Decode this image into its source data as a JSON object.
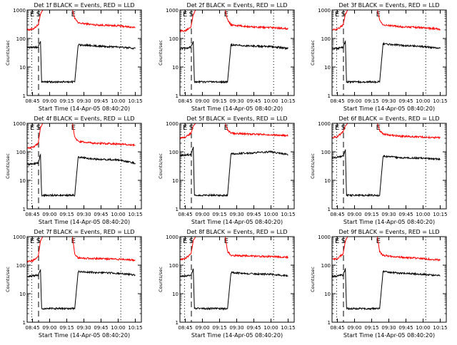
{
  "chart_data": [
    {
      "type": "line",
      "title": "Det 1f BLACK = Events, RED = LLD",
      "xlabel": "Start Time (14-Apr-05 08:40:20)",
      "ylabel": "Counts/sec",
      "y_scale": "log",
      "ylim": [
        1,
        1000
      ],
      "yticks": [
        1,
        10,
        100,
        1000
      ],
      "yticklabels": [
        "1",
        "10",
        "100",
        "1000"
      ],
      "xlim_minutes": [
        0,
        100
      ],
      "xticklabels": [
        "08:45",
        "09:00",
        "09:15",
        "09:30",
        "09:45",
        "10:00",
        "10:15"
      ],
      "markers": [
        {
          "text": "E",
          "style": "dotted"
        },
        {
          "text": "S",
          "style": "dashed"
        },
        {
          "text": "E",
          "style": "dotted"
        }
      ],
      "series": [
        {
          "color": "#ff0000",
          "x": [
            "08:40",
            "08:45",
            "08:50",
            "08:52",
            "08:54",
            "08:55",
            "09:20",
            "09:22",
            "09:25",
            "09:40",
            "10:00",
            "10:15"
          ],
          "y": [
            200,
            210,
            300,
            700,
            1000,
            1000,
            1000,
            500,
            350,
            300,
            280,
            240
          ]
        },
        {
          "color": "#000000",
          "x": [
            "08:40",
            "08:45",
            "08:50",
            "08:52",
            "08:53",
            "09:22",
            "09:25",
            "09:40",
            "10:00",
            "10:15"
          ],
          "y": [
            50,
            48,
            50,
            80,
            3,
            3,
            60,
            55,
            50,
            45
          ]
        }
      ]
    },
    {
      "type": "line",
      "title": "Det 2f BLACK = Events, RED = LLD",
      "xlabel": "Start Time (14-Apr-05 08:40:20)",
      "ylabel": "Counts/sec",
      "y_scale": "log",
      "ylim": [
        1,
        1000
      ],
      "yticks": [
        1,
        10,
        100,
        1000
      ],
      "yticklabels": [
        "1",
        "10",
        "100",
        "1000"
      ],
      "xlim_minutes": [
        0,
        100
      ],
      "xticklabels": [
        "08:45",
        "09:00",
        "09:15",
        "09:30",
        "09:45",
        "10:00",
        "10:15"
      ],
      "markers": [
        {
          "text": "E",
          "style": "dotted"
        },
        {
          "text": "S",
          "style": "dashed"
        },
        {
          "text": "E",
          "style": "dotted"
        }
      ],
      "series": [
        {
          "color": "#ff0000",
          "x": [
            "08:40",
            "08:45",
            "08:50",
            "08:52",
            "08:54",
            "08:55",
            "09:20",
            "09:22",
            "09:25",
            "09:40",
            "10:00",
            "10:15"
          ],
          "y": [
            180,
            190,
            260,
            700,
            1000,
            1000,
            1000,
            450,
            300,
            260,
            240,
            220
          ]
        },
        {
          "color": "#000000",
          "x": [
            "08:40",
            "08:45",
            "08:50",
            "08:52",
            "08:53",
            "09:22",
            "09:25",
            "09:40",
            "10:00",
            "10:15"
          ],
          "y": [
            45,
            45,
            50,
            80,
            3,
            3,
            60,
            55,
            52,
            45
          ]
        }
      ]
    },
    {
      "type": "line",
      "title": "Det 3f BLACK = Events, RED = LLD",
      "xlabel": "Start Time (14-Apr-05 08:40:20)",
      "ylabel": "Counts/sec",
      "y_scale": "log",
      "ylim": [
        1,
        1000
      ],
      "yticks": [
        1,
        10,
        100,
        1000
      ],
      "yticklabels": [
        "1",
        "10",
        "100",
        "1000"
      ],
      "xlim_minutes": [
        0,
        100
      ],
      "xticklabels": [
        "08:45",
        "09:00",
        "09:15",
        "09:30",
        "09:45",
        "10:00",
        "10:15"
      ],
      "markers": [
        {
          "text": "E",
          "style": "dotted"
        },
        {
          "text": "S",
          "style": "dashed"
        },
        {
          "text": "E",
          "style": "dotted"
        }
      ],
      "series": [
        {
          "color": "#ff0000",
          "x": [
            "08:40",
            "08:45",
            "08:50",
            "08:52",
            "08:54",
            "08:55",
            "09:20",
            "09:22",
            "09:25",
            "09:40",
            "10:00",
            "10:15"
          ],
          "y": [
            200,
            210,
            300,
            700,
            1000,
            1000,
            1000,
            450,
            300,
            260,
            240,
            210
          ]
        },
        {
          "color": "#000000",
          "x": [
            "08:40",
            "08:45",
            "08:50",
            "08:52",
            "08:53",
            "09:22",
            "09:25",
            "09:40",
            "10:00",
            "10:15"
          ],
          "y": [
            45,
            45,
            50,
            80,
            3,
            3,
            65,
            58,
            52,
            45
          ]
        }
      ]
    },
    {
      "type": "line",
      "title": "Det 4f BLACK = Events, RED = LLD",
      "xlabel": "Start Time (14-Apr-05 08:40:20)",
      "ylabel": "Counts/sec",
      "y_scale": "log",
      "ylim": [
        1,
        1000
      ],
      "yticks": [
        1,
        10,
        100,
        1000
      ],
      "yticklabels": [
        "1",
        "10",
        "100",
        "1000"
      ],
      "xlim_minutes": [
        0,
        100
      ],
      "xticklabels": [
        "08:45",
        "09:00",
        "09:15",
        "09:30",
        "09:45",
        "10:00",
        "10:15"
      ],
      "markers": [
        {
          "text": "E",
          "style": "dotted"
        },
        {
          "text": "S",
          "style": "dashed"
        },
        {
          "text": "E",
          "style": "dotted"
        }
      ],
      "series": [
        {
          "color": "#ff0000",
          "x": [
            "08:40",
            "08:45",
            "08:50",
            "08:52",
            "08:54",
            "08:55",
            "09:20",
            "09:22",
            "09:25",
            "09:40",
            "10:00",
            "10:15"
          ],
          "y": [
            130,
            140,
            200,
            700,
            1000,
            1000,
            1000,
            320,
            230,
            200,
            190,
            170
          ]
        },
        {
          "color": "#000000",
          "x": [
            "08:40",
            "08:45",
            "08:50",
            "08:52",
            "08:53",
            "09:22",
            "09:25",
            "09:40",
            "10:00",
            "10:15"
          ],
          "y": [
            35,
            38,
            40,
            80,
            3,
            3,
            65,
            55,
            52,
            40
          ]
        }
      ]
    },
    {
      "type": "line",
      "title": "Det 5f BLACK = Events, RED = LLD",
      "xlabel": "Start Time (14-Apr-05 08:40:20)",
      "ylabel": "Counts/sec",
      "y_scale": "log",
      "ylim": [
        1,
        1000
      ],
      "yticks": [
        1,
        10,
        100,
        1000
      ],
      "yticklabels": [
        "1",
        "10",
        "100",
        "1000"
      ],
      "xlim_minutes": [
        0,
        100
      ],
      "xticklabels": [
        "08:45",
        "09:00",
        "09:15",
        "09:30",
        "09:45",
        "10:00",
        "10:15"
      ],
      "markers": [
        {
          "text": "E",
          "style": "dotted"
        },
        {
          "text": "S",
          "style": "dashed"
        },
        {
          "text": "E",
          "style": "dotted"
        }
      ],
      "series": [
        {
          "color": "#ff0000",
          "x": [
            "08:40",
            "08:45",
            "08:50",
            "08:52",
            "08:54",
            "08:55",
            "09:20",
            "09:22",
            "09:25",
            "09:40",
            "10:00",
            "10:15"
          ],
          "y": [
            300,
            320,
            450,
            800,
            1000,
            1000,
            1000,
            600,
            450,
            420,
            400,
            370
          ]
        },
        {
          "color": "#000000",
          "x": [
            "08:40",
            "08:45",
            "08:50",
            "08:52",
            "08:53",
            "09:22",
            "09:25",
            "09:40",
            "10:00",
            "10:15"
          ],
          "y": [
            75,
            78,
            80,
            150,
            3,
            3,
            85,
            90,
            100,
            80
          ]
        }
      ]
    },
    {
      "type": "line",
      "title": "Det 6f BLACK = Events, RED = LLD",
      "xlabel": "Start Time (14-Apr-05 08:40:20)",
      "ylabel": "Counts/sec",
      "y_scale": "log",
      "ylim": [
        1,
        1000
      ],
      "yticks": [
        1,
        10,
        100,
        1000
      ],
      "yticklabels": [
        "1",
        "10",
        "100",
        "1000"
      ],
      "xlim_minutes": [
        0,
        100
      ],
      "xticklabels": [
        "08:45",
        "09:00",
        "09:15",
        "09:30",
        "09:45",
        "10:00",
        "10:15"
      ],
      "markers": [
        {
          "text": "E",
          "style": "dotted"
        },
        {
          "text": "S",
          "style": "dashed"
        },
        {
          "text": "E",
          "style": "dotted"
        }
      ],
      "series": [
        {
          "color": "#ff0000",
          "x": [
            "08:40",
            "08:45",
            "08:50",
            "08:52",
            "08:54",
            "08:55",
            "09:20",
            "09:22",
            "09:25",
            "09:40",
            "10:00",
            "10:15"
          ],
          "y": [
            320,
            340,
            500,
            800,
            1000,
            1000,
            1000,
            550,
            420,
            350,
            330,
            310
          ]
        },
        {
          "color": "#000000",
          "x": [
            "08:40",
            "08:45",
            "08:50",
            "08:52",
            "08:53",
            "09:22",
            "09:25",
            "09:40",
            "10:00",
            "10:15"
          ],
          "y": [
            60,
            65,
            70,
            120,
            3,
            3,
            70,
            62,
            60,
            55
          ]
        }
      ]
    },
    {
      "type": "line",
      "title": "Det 7f BLACK = Events, RED = LLD",
      "xlabel": "Start Time (14-Apr-05 08:40:20)",
      "ylabel": "Counts/sec",
      "y_scale": "log",
      "ylim": [
        1,
        1000
      ],
      "yticks": [
        1,
        10,
        100,
        1000
      ],
      "yticklabels": [
        "1",
        "10",
        "100",
        "1000"
      ],
      "xlim_minutes": [
        0,
        100
      ],
      "xticklabels": [
        "08:45",
        "09:00",
        "09:15",
        "09:30",
        "09:45",
        "10:00",
        "10:15"
      ],
      "markers": [
        {
          "text": "E",
          "style": "dotted"
        },
        {
          "text": "S",
          "style": "dashed"
        },
        {
          "text": "E",
          "style": "dotted"
        }
      ],
      "series": [
        {
          "color": "#ff0000",
          "x": [
            "08:40",
            "08:45",
            "08:50",
            "08:52",
            "08:54",
            "08:55",
            "09:20",
            "09:22",
            "09:25",
            "09:40",
            "10:00",
            "10:15"
          ],
          "y": [
            130,
            140,
            200,
            700,
            1000,
            1000,
            1000,
            250,
            180,
            170,
            160,
            150
          ]
        },
        {
          "color": "#000000",
          "x": [
            "08:40",
            "08:45",
            "08:50",
            "08:52",
            "08:53",
            "09:22",
            "09:25",
            "09:40",
            "10:00",
            "10:15"
          ],
          "y": [
            40,
            42,
            45,
            70,
            3,
            3,
            60,
            55,
            52,
            45
          ]
        }
      ]
    },
    {
      "type": "line",
      "title": "Det 8f BLACK = Events, RED = LLD",
      "xlabel": "Start Time (14-Apr-05 08:40:20)",
      "ylabel": "Counts/sec",
      "y_scale": "log",
      "ylim": [
        1,
        1000
      ],
      "yticks": [
        1,
        10,
        100,
        1000
      ],
      "yticklabels": [
        "1",
        "10",
        "100",
        "1000"
      ],
      "xlim_minutes": [
        0,
        100
      ],
      "xticklabels": [
        "08:45",
        "09:00",
        "09:15",
        "09:30",
        "09:45",
        "10:00",
        "10:15"
      ],
      "markers": [
        {
          "text": "E",
          "style": "dotted"
        },
        {
          "text": "S",
          "style": "dashed"
        },
        {
          "text": "E",
          "style": "dotted"
        }
      ],
      "series": [
        {
          "color": "#ff0000",
          "x": [
            "08:40",
            "08:45",
            "08:50",
            "08:52",
            "08:54",
            "08:55",
            "09:20",
            "09:22",
            "09:25",
            "09:40",
            "10:00",
            "10:15"
          ],
          "y": [
            160,
            170,
            250,
            700,
            1000,
            1000,
            1000,
            300,
            220,
            210,
            200,
            190
          ]
        },
        {
          "color": "#000000",
          "x": [
            "08:40",
            "08:45",
            "08:50",
            "08:52",
            "08:53",
            "09:22",
            "09:25",
            "09:40",
            "10:00",
            "10:15"
          ],
          "y": [
            40,
            42,
            45,
            75,
            3,
            3,
            55,
            50,
            48,
            42
          ]
        }
      ]
    },
    {
      "type": "line",
      "title": "Det 9f BLACK = Events, RED = LLD",
      "xlabel": "Start Time (14-Apr-05 08:40:20)",
      "ylabel": "Counts/sec",
      "y_scale": "log",
      "ylim": [
        1,
        1000
      ],
      "yticks": [
        1,
        10,
        100,
        1000
      ],
      "yticklabels": [
        "1",
        "10",
        "100",
        "1000"
      ],
      "xlim_minutes": [
        0,
        100
      ],
      "xticklabels": [
        "08:45",
        "09:00",
        "09:15",
        "09:30",
        "09:45",
        "10:00",
        "10:15"
      ],
      "markers": [
        {
          "text": "E",
          "style": "dotted"
        },
        {
          "text": "S",
          "style": "dashed"
        },
        {
          "text": "E",
          "style": "dotted"
        }
      ],
      "series": [
        {
          "color": "#ff0000",
          "x": [
            "08:40",
            "08:45",
            "08:50",
            "08:52",
            "08:54",
            "08:55",
            "09:20",
            "09:22",
            "09:25",
            "09:40",
            "10:00",
            "10:15"
          ],
          "y": [
            160,
            170,
            250,
            700,
            1000,
            1000,
            1000,
            300,
            220,
            190,
            170,
            150
          ]
        },
        {
          "color": "#000000",
          "x": [
            "08:40",
            "08:45",
            "08:50",
            "08:52",
            "08:53",
            "09:22",
            "09:25",
            "09:40",
            "10:00",
            "10:15"
          ],
          "y": [
            40,
            42,
            45,
            75,
            3,
            3,
            60,
            52,
            48,
            42
          ]
        }
      ]
    }
  ]
}
